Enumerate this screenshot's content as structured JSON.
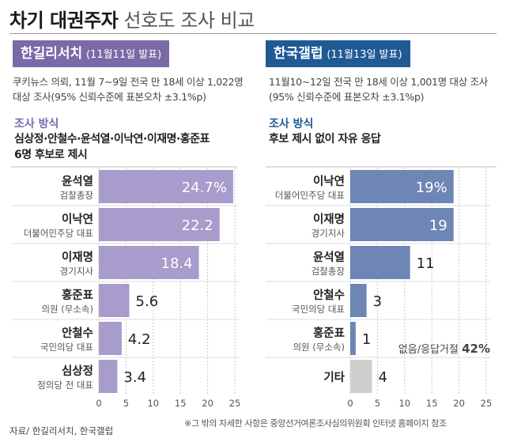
{
  "title": {
    "bold": "차기 대권주자",
    "light": "선호도 조사 비교"
  },
  "colors": {
    "left_bar": "#a79ccc",
    "right_bar": "#6d86b5",
    "other_bar": "#cfcfcf",
    "left_badge": "#7a6aa8",
    "right_badge": "#1f5a94",
    "left_method": "#7a6aa8",
    "right_method": "#1f5a94"
  },
  "left": {
    "badge_name": "한길리서치",
    "badge_date": "(11월11일 발표)",
    "desc": [
      "쿠키뉴스 의뢰, 11월 7~9일 전국 만 18세 이상 1,022명",
      "대상 조사(95% 신뢰수준에 표본오차 ±3.1%p)"
    ],
    "method_label": "조사 방식",
    "method": [
      "심상정·안철수·윤석열·이낙연·이재명·홍준표",
      "6명 후보로 제시"
    ]
  },
  "right": {
    "badge_name": "한국갤럽",
    "badge_date": "(11월13일 발표)",
    "desc": [
      "11월10~12일 전국 만 18세 이상 1,001명 대상 조사",
      "(95% 신뢰수준에 표본오차 ±3.1%p)"
    ],
    "method_label": "조사 방식",
    "method": [
      "후보 제시 없이 자유 응답"
    ]
  },
  "note": {
    "label": "없음/응답거절",
    "value": "42%"
  },
  "footer": {
    "source": "자료/ 한길리서치, 한국갤럽",
    "note": "※그 밖의 자세한 사항은 중앙선거여론조사심의위원회 인터넷 홈페이지 참조"
  },
  "chart_data": [
    {
      "type": "bar",
      "orientation": "horizontal",
      "categories": [
        "윤석열",
        "이낙연",
        "이재명",
        "홍준표",
        "안철수",
        "심상정"
      ],
      "subtitles": [
        "검찰총장",
        "더불어민주당 대표",
        "경기지사",
        "의원 (무소속)",
        "국민의당 대표",
        "정의당 전 대표"
      ],
      "values": [
        24.7,
        22.2,
        18.4,
        5.6,
        4.2,
        3.4
      ],
      "value_labels": [
        "24.7%",
        "22.2",
        "18.4",
        "5.6",
        "4.2",
        "3.4"
      ],
      "xlim": [
        0,
        25
      ],
      "ticks": [
        "0",
        "5",
        "10",
        "15",
        "20",
        "25"
      ],
      "grid": true
    },
    {
      "type": "bar",
      "orientation": "horizontal",
      "categories": [
        "이낙연",
        "이재명",
        "윤석열",
        "안철수",
        "홍준표",
        "기타"
      ],
      "subtitles": [
        "더불어민주당 대표",
        "경기지사",
        "검찰총장",
        "국민의당 대표",
        "의원 (무소속)",
        ""
      ],
      "values": [
        19,
        19,
        11,
        3,
        1,
        4
      ],
      "value_labels": [
        "19%",
        "19",
        "11",
        "3",
        "1",
        "4"
      ],
      "xlim": [
        0,
        25
      ],
      "ticks": [
        "0",
        "5",
        "10",
        "15",
        "20",
        "25"
      ],
      "grid": true
    }
  ]
}
